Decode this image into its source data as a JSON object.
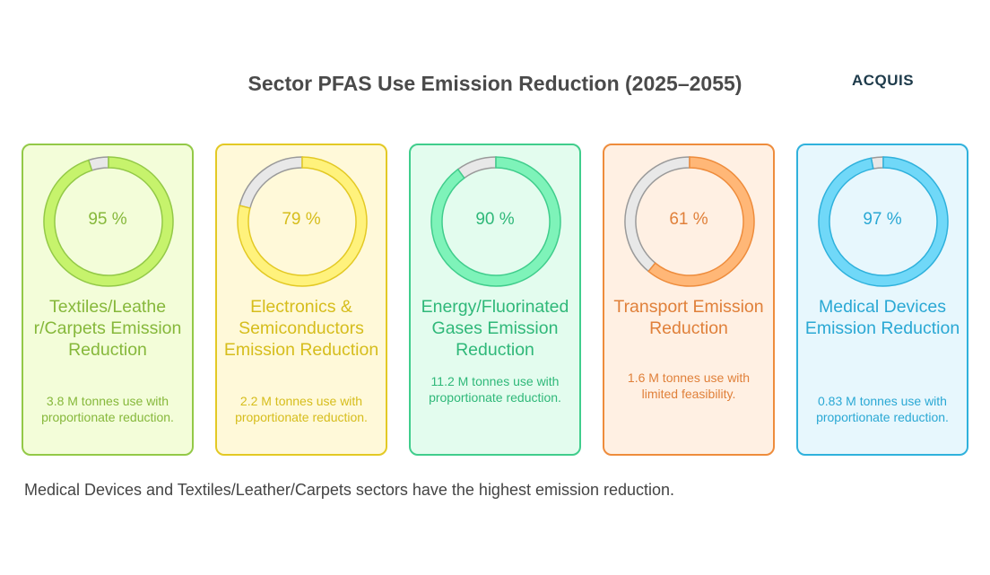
{
  "title": "Sector PFAS Use Emission Reduction (2025–2055)",
  "logo_text": "ACQUIS",
  "cards": [
    {
      "percent": 95,
      "percent_label": "95 %",
      "heading": "Textiles/Leathe r/Carpets Emission Reduction",
      "description": "3.8 M tonnes use with proportionate reduction.",
      "colors": {
        "bg": "#f3fdd9",
        "border": "#93c947",
        "fill": "#c6f36c",
        "text": "#86b83b"
      }
    },
    {
      "percent": 79,
      "percent_label": "79 %",
      "heading": "Electronics & Semiconductors Emission Reduction",
      "description": "2.2 M tonnes use with proportionate reduction.",
      "colors": {
        "bg": "#fff9d9",
        "border": "#e3c924",
        "fill": "#fff27c",
        "text": "#d6bd1c"
      }
    },
    {
      "percent": 90,
      "percent_label": "90 %",
      "heading": "Energy/Fluorinated Gases Emission Reduction",
      "description": "11.2 M tonnes use with proportionate reduction.",
      "colors": {
        "bg": "#e3fcee",
        "border": "#40cd8c",
        "fill": "#7ef3b9",
        "text": "#2fb879"
      }
    },
    {
      "percent": 61,
      "percent_label": "61 %",
      "heading": "Transport Emission Reduction",
      "description": "1.6 M tonnes use with limited feasibility.",
      "colors": {
        "bg": "#fff0e3",
        "border": "#ee8c3c",
        "fill": "#ffb777",
        "text": "#e0803a"
      }
    },
    {
      "percent": 97,
      "percent_label": "97 %",
      "heading": "Medical Devices Emission Reduction",
      "description": "0.83 M tonnes use with proportionate reduction.",
      "colors": {
        "bg": "#e7f7fd",
        "border": "#2fb1dc",
        "fill": "#70d8f8",
        "text": "#2aa8d4"
      }
    }
  ],
  "remainder_colors": {
    "fill": "#e8e8e8",
    "stroke": "#9a9a9a"
  },
  "footer": "Medical Devices and Textiles/Leather/Carpets sectors have the highest emission reduction."
}
